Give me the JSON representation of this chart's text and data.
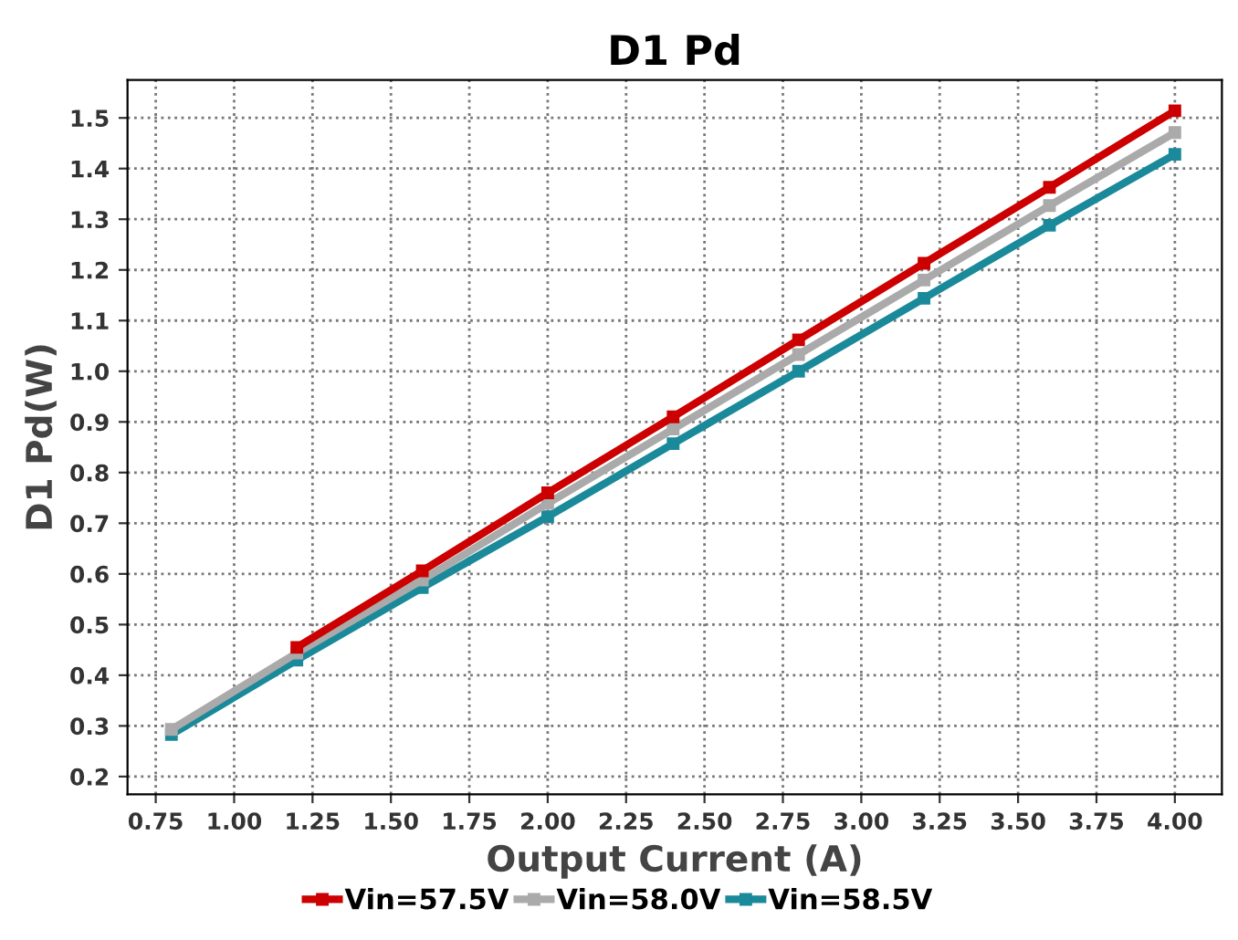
{
  "chart_data": {
    "type": "line",
    "title": "D1 Pd",
    "xlabel": "Output Current (A)",
    "ylabel": "D1 Pd(W)",
    "x": [
      0.8,
      1.2,
      1.6,
      2.0,
      2.4,
      2.8,
      3.2,
      3.6,
      4.0
    ],
    "series": [
      {
        "name": "Vin=57.5V",
        "color": "#cc0000",
        "values": [
          null,
          0.455,
          0.606,
          0.76,
          0.91,
          1.062,
          1.213,
          1.363,
          1.514
        ]
      },
      {
        "name": "Vin=58.0V",
        "color": "#aaaaaa",
        "values": [
          0.293,
          0.444,
          0.588,
          0.739,
          0.886,
          1.033,
          1.18,
          1.327,
          1.471
        ]
      },
      {
        "name": "Vin=58.5V",
        "color": "#1a8a9a",
        "values": [
          0.283,
          0.43,
          0.573,
          0.713,
          0.857,
          1.0,
          1.144,
          1.288,
          1.428
        ]
      }
    ],
    "xlim": [
      0.66,
      4.15
    ],
    "xticks": [
      0.75,
      {
        "value": 1,
        "label": "1.00"
      },
      1.25,
      {
        "value": 1.5,
        "label": "1.50"
      },
      1.75,
      {
        "value": 2,
        "label": "2.00"
      },
      2.25,
      {
        "value": 2.5,
        "label": "2.50"
      },
      2.75,
      {
        "value": 3,
        "label": "3.00"
      },
      3.25,
      {
        "value": 3.5,
        "label": "3.50"
      },
      3.75,
      {
        "value": 4,
        "label": "4.00"
      }
    ],
    "ylim": [
      0.165,
      1.575
    ],
    "yticks": [
      0.2,
      0.3,
      0.4,
      0.5,
      0.6,
      0.7,
      0.8,
      0.9,
      {
        "value": 1,
        "label": "1.0"
      },
      1.1,
      1.2,
      1.3,
      1.4,
      1.5
    ],
    "grid": true,
    "legend": "bottom",
    "marker": "square",
    "line_style": "solid"
  }
}
